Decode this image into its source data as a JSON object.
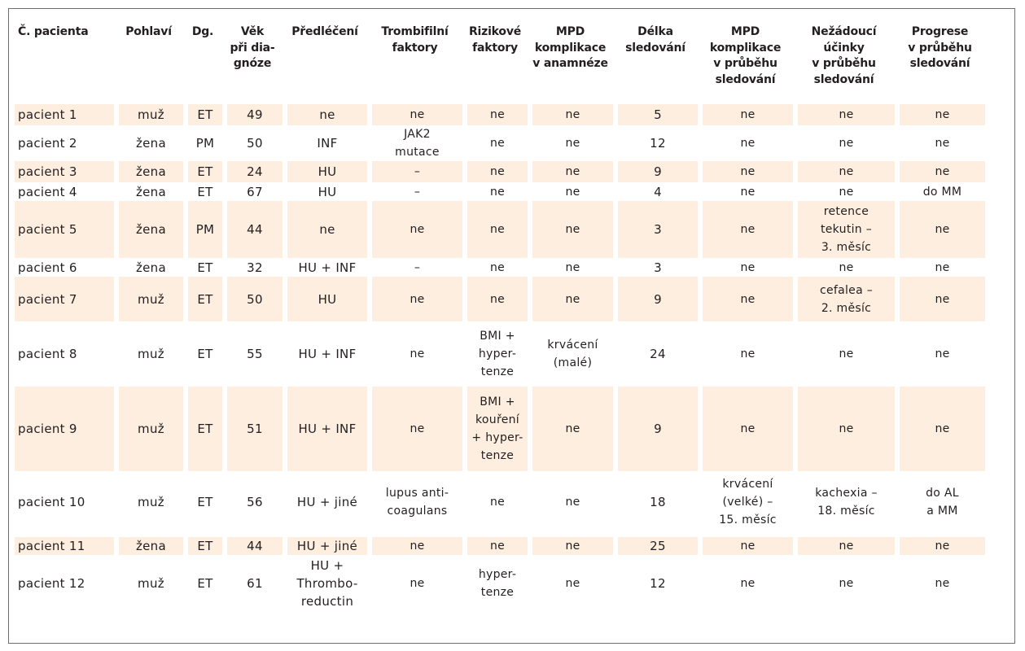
{
  "table": {
    "headers": [
      "Č. pacienta",
      "Pohlaví",
      "Dg.",
      "Věk\npři dia-\ngnóze",
      "Předléčení",
      "Trombifilní\nfaktory",
      "Rizikové\nfaktory",
      "MPD\nkomplikace\nv anamnéze",
      "Délka\nsledování",
      "MPD\nkomplikace\nv průběhu\nsledování",
      "Nežádoucí\núčinky\nv průběhu\nsledování",
      "Progrese\nv průběhu\nsledování"
    ],
    "rows": [
      [
        "pacient 1",
        "muž",
        "ET",
        "49",
        "ne",
        "ne",
        "ne",
        "ne",
        "5",
        "ne",
        "ne",
        "ne"
      ],
      [
        "pacient 2",
        "žena",
        "PM",
        "50",
        "INF",
        "JAK2\nmutace",
        "ne",
        "ne",
        "12",
        "ne",
        "ne",
        "ne"
      ],
      [
        "pacient 3",
        "žena",
        "ET",
        "24",
        "HU",
        "–",
        "ne",
        "ne",
        "9",
        "ne",
        "ne",
        "ne"
      ],
      [
        "pacient 4",
        "žena",
        "ET",
        "67",
        "HU",
        "–",
        "ne",
        "ne",
        "4",
        "ne",
        "ne",
        "do MM"
      ],
      [
        "pacient 5",
        "žena",
        "PM",
        "44",
        "ne",
        "ne",
        "ne",
        "ne",
        "3",
        "ne",
        "retence\ntekutin –\n3. měsíc",
        "ne"
      ],
      [
        "pacient 6",
        "žena",
        "ET",
        "32",
        "HU + INF",
        "–",
        "ne",
        "ne",
        "3",
        "ne",
        "ne",
        "ne"
      ],
      [
        "pacient 7",
        "muž",
        "ET",
        "50",
        "HU",
        "ne",
        "ne",
        "ne",
        "9",
        "ne",
        "cefalea –\n2. měsíc",
        "ne"
      ],
      [
        "pacient 8",
        "muž",
        "ET",
        "55",
        "HU + INF",
        "ne",
        "BMI +\nhyper-\ntenze",
        "krvácení\n(malé)",
        "24",
        "ne",
        "ne",
        "ne"
      ],
      [
        "pacient 9",
        "muž",
        "ET",
        "51",
        "HU + INF",
        "ne",
        "BMI +\nkouření\n+ hyper-\ntenze",
        "ne",
        "9",
        "ne",
        "ne",
        "ne"
      ],
      [
        "pacient 10",
        "muž",
        "ET",
        "56",
        "HU + jiné",
        "lupus anti-\ncoagulans",
        "ne",
        "ne",
        "18",
        "krvácení\n(velké) –\n15. měsíc",
        "kachexia –\n18. měsíc",
        "do AL\na MM"
      ],
      [
        "pacient 11",
        "žena",
        "ET",
        "44",
        "HU + jiné",
        "ne",
        "ne",
        "ne",
        "25",
        "ne",
        "ne",
        "ne"
      ],
      [
        "pacient 12",
        "muž",
        "ET",
        "61",
        "HU +\nThrombo-\nreductin",
        "ne",
        "hyper-\ntenze",
        "ne",
        "12",
        "ne",
        "ne",
        "ne"
      ]
    ],
    "shaded_rows": [
      0,
      2,
      4,
      6,
      8,
      10
    ],
    "shade_color": "#fdeedf"
  }
}
